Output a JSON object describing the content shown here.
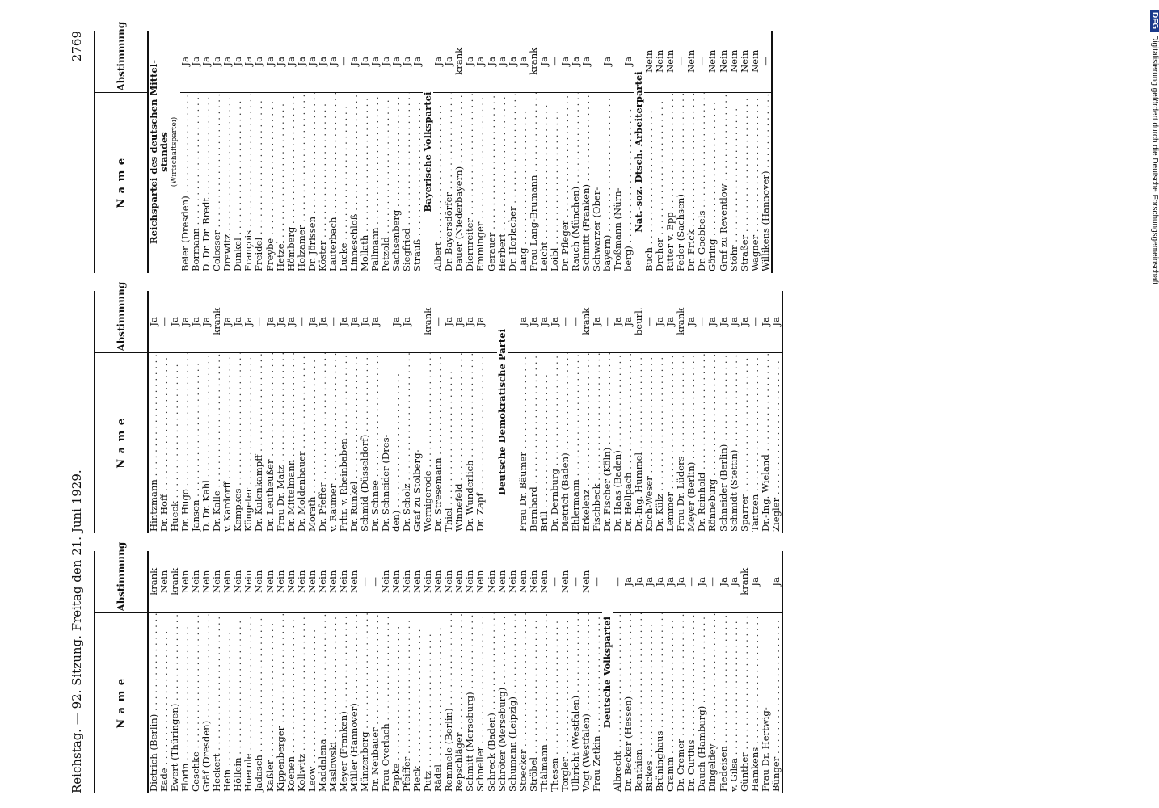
{
  "header": {
    "left": "Reichstag. — 92. Sitzung. Freitag den 21. Juni 1929.",
    "page_number": "2769"
  },
  "column_headers": {
    "name": "N a m e",
    "vote": "Abstimmung"
  },
  "side_credit": {
    "logo": "DFG",
    "text": "Digitalisierung gefördert durch die Deutsche Forschungsgemeinschaft"
  },
  "columns": [
    {
      "rows": [
        {
          "n": "Dietrich (Berlin)",
          "v": "krank"
        },
        {
          "n": "Eade",
          "v": "Nein"
        },
        {
          "n": "Ewert (Thüringen)",
          "v": "krank"
        },
        {
          "n": "Florin",
          "v": "Nein"
        },
        {
          "n": "Geschke",
          "v": "Nein"
        },
        {
          "n": "Gräf (Dresden)",
          "v": "Nein"
        },
        {
          "n": "Heckert",
          "v": "Nein"
        },
        {
          "n": "Hein",
          "v": "Nein"
        },
        {
          "n": "Höllein",
          "v": "Nein"
        },
        {
          "n": "Hoernle",
          "v": "Nein"
        },
        {
          "n": "Jadasch",
          "v": "Nein"
        },
        {
          "n": "Kaßler",
          "v": "Nein"
        },
        {
          "n": "Kippenberger",
          "v": "Nein"
        },
        {
          "n": "Koenen",
          "v": "Nein"
        },
        {
          "n": "Kollwitz",
          "v": "Nein"
        },
        {
          "n": "Leow",
          "v": "Nein"
        },
        {
          "n": "Maddalena",
          "v": "Nein"
        },
        {
          "n": "Maslowski",
          "v": "Nein"
        },
        {
          "n": "Meyer (Franken)",
          "v": "Nein"
        },
        {
          "n": "Müller (Hannover)",
          "v": "Nein"
        },
        {
          "n": "Münzenberg",
          "v": "—"
        },
        {
          "n": "Dr. Neubauer",
          "v": "—"
        },
        {
          "n": "Frau Overlach",
          "v": "Nein"
        },
        {
          "n": "Papke",
          "v": "Nein"
        },
        {
          "n": "Pfeiffer",
          "v": "Nein"
        },
        {
          "n": "Pieck",
          "v": "Nein"
        },
        {
          "n": "Putz",
          "v": "Nein"
        },
        {
          "n": "Rädel",
          "v": "Nein"
        },
        {
          "n": "Remmele (Berlin)",
          "v": "Nein"
        },
        {
          "n": "Repschläger",
          "v": "Nein"
        },
        {
          "n": "Schmitt (Merseburg)",
          "v": "Nein"
        },
        {
          "n": "Schneller",
          "v": "Nein"
        },
        {
          "n": "Schreck (Baden)",
          "v": "Nein"
        },
        {
          "n": "Schröter (Merseburg)",
          "v": "Nein"
        },
        {
          "n": "Schumann (Leipzig)",
          "v": "Nein"
        },
        {
          "n": "Stoecker",
          "v": "Nein"
        },
        {
          "n": "Ströbel",
          "v": "Nein"
        },
        {
          "n": "Thälmann",
          "v": "Nein"
        },
        {
          "n": "Thesen",
          "v": "—"
        },
        {
          "n": "Torgler",
          "v": "Nein"
        },
        {
          "n": "Ulbricht (Westfalen)",
          "v": "—"
        },
        {
          "n": "Vogt (Westfalen)",
          "v": "Nein"
        },
        {
          "n": "Frau Zetkin",
          "v": "—"
        },
        {
          "n": "Deutsche Volkspartei",
          "v": "",
          "party": true
        },
        {
          "n": "Albrecht",
          "v": "—"
        },
        {
          "n": "Dr. Becker (Hessen)",
          "v": "Ja"
        },
        {
          "n": "Benthien",
          "v": "Ja"
        },
        {
          "n": "Bickes",
          "v": "Ja"
        },
        {
          "n": "Brüninghaus",
          "v": "Ja"
        },
        {
          "n": "Cramm",
          "v": "Ja"
        },
        {
          "n": "Dr. Cremer",
          "v": "Ja"
        },
        {
          "n": "Dr. Curtius",
          "v": "—"
        },
        {
          "n": "Dauch (Hamburg)",
          "v": "Ja"
        },
        {
          "n": "Dingeldey",
          "v": "—"
        },
        {
          "n": "Fiedeisen",
          "v": "Ja"
        },
        {
          "n": "v. Gilsa",
          "v": "Ja"
        },
        {
          "n": "Günther",
          "v": "krank"
        },
        {
          "n": "Hamkens",
          "v": "Ja"
        },
        {
          "n": "Frau Dr. Hertwig-",
          "v": ""
        },
        {
          "n": "Bünger",
          "v": "Ja"
        }
      ]
    },
    {
      "rows": [
        {
          "n": "Hintzmann",
          "v": "Ja"
        },
        {
          "n": "Dr. Hoff",
          "v": "—"
        },
        {
          "n": "Hueck",
          "v": "Ja"
        },
        {
          "n": "Dr. Hugo",
          "v": "Ja"
        },
        {
          "n": "Janson",
          "v": "Ja"
        },
        {
          "n": "D. Dr. Kahl",
          "v": "Ja"
        },
        {
          "n": "Dr. Kalle",
          "v": "krank"
        },
        {
          "n": "v. Kardorff",
          "v": "Ja"
        },
        {
          "n": "Kempkes",
          "v": "Ja"
        },
        {
          "n": "Köngeter",
          "v": "Ja"
        },
        {
          "n": "Dr. Kulenkampff",
          "v": "—"
        },
        {
          "n": "Dr. Leutheußer",
          "v": "Ja"
        },
        {
          "n": "Frau Dr. Matz",
          "v": "Ja"
        },
        {
          "n": "Dr. Mittelmann",
          "v": "Ja"
        },
        {
          "n": "Dr. Moldenhauer",
          "v": "—"
        },
        {
          "n": "Morath",
          "v": "Ja"
        },
        {
          "n": "Dr. Pfeffer",
          "v": "Ja"
        },
        {
          "n": "v. Raumer",
          "v": "—"
        },
        {
          "n": "Frhr. v. Rheinbaben",
          "v": "Ja"
        },
        {
          "n": "Dr. Runkel",
          "v": "Ja"
        },
        {
          "n": "Schmid (Düsseldorf)",
          "v": "Ja"
        },
        {
          "n": "Dr. Schnee",
          "v": "Ja"
        },
        {
          "n": "Dr. Schneider (Dres-",
          "v": ""
        },
        {
          "n": "den)",
          "v": "Ja"
        },
        {
          "n": "Dr. Scholz",
          "v": "Ja"
        },
        {
          "n": "Graf zu Stolberg-",
          "v": ""
        },
        {
          "n": "Wernigerode",
          "v": "krank"
        },
        {
          "n": "Dr. Stresemann",
          "v": "—"
        },
        {
          "n": "Thiel",
          "v": "Ja"
        },
        {
          "n": "Winnefeld",
          "v": "Ja"
        },
        {
          "n": "Dr. Wunderlich",
          "v": "Ja"
        },
        {
          "n": "Dr. Zapf",
          "v": "Ja"
        },
        {
          "n": "",
          "v": "",
          "blank": true
        },
        {
          "n": "Deutsche Demokratische Partei",
          "v": "",
          "party": true
        },
        {
          "n": "",
          "v": "",
          "blank": true
        },
        {
          "n": "Frau Dr. Bäumer",
          "v": "Ja"
        },
        {
          "n": "Bernhard",
          "v": "Ja"
        },
        {
          "n": "Brill",
          "v": "Ja"
        },
        {
          "n": "Dr. Dernburg",
          "v": "Ja"
        },
        {
          "n": "Dietrich (Baden)",
          "v": "—"
        },
        {
          "n": "Ehlermann",
          "v": "—"
        },
        {
          "n": "Erkelenz",
          "v": "krank"
        },
        {
          "n": "Fischbeck",
          "v": "Ja"
        },
        {
          "n": "Dr. Fischer (Köln)",
          "v": "—"
        },
        {
          "n": "Dr. Haas (Baden)",
          "v": "Ja"
        },
        {
          "n": "Dr. Hellpach",
          "v": "Ja"
        },
        {
          "n": "Dr.-Ing. Hummel",
          "v": "beurl."
        },
        {
          "n": "Koch-Weser",
          "v": "—"
        },
        {
          "n": "Dr. Külz",
          "v": "Ja"
        },
        {
          "n": "Lemmer",
          "v": "Ja"
        },
        {
          "n": "Frau Dr. Lüders",
          "v": "krank"
        },
        {
          "n": "Meyer (Berlin)",
          "v": "Ja"
        },
        {
          "n": "Dr. Reinhold",
          "v": "—"
        },
        {
          "n": "Rönneburg",
          "v": "Ja"
        },
        {
          "n": "Schneider (Berlin)",
          "v": "Ja"
        },
        {
          "n": "Schmidt (Stettin)",
          "v": "Ja"
        },
        {
          "n": "Sparrer",
          "v": "Ja"
        },
        {
          "n": "Tantzen",
          "v": "—"
        },
        {
          "n": "Dr.-Ing. Wieland",
          "v": "Ja"
        },
        {
          "n": "Ziegler",
          "v": "Ja"
        }
      ]
    },
    {
      "rows": [
        {
          "n": "Reichspartei des deutschen Mittel-",
          "v": "",
          "party": true
        },
        {
          "n": "standes",
          "v": "",
          "party": true
        },
        {
          "n": "(Wirtschaftspartei)",
          "v": "",
          "sub": true
        },
        {
          "n": "Beier (Dresden)",
          "v": "Ja"
        },
        {
          "n": "Bormann",
          "v": "Ja"
        },
        {
          "n": "D. Dr. Dr. Bredt",
          "v": "Ja"
        },
        {
          "n": "Colosser",
          "v": "Ja"
        },
        {
          "n": "Drewitz",
          "v": "Ja"
        },
        {
          "n": "Dunkel",
          "v": "Ja"
        },
        {
          "n": "François",
          "v": "Ja"
        },
        {
          "n": "Freidel",
          "v": "Ja"
        },
        {
          "n": "Freybe",
          "v": "Ja"
        },
        {
          "n": "Hetzel",
          "v": "Ja"
        },
        {
          "n": "Hömberg",
          "v": "Ja"
        },
        {
          "n": "Holzamer",
          "v": "Ja"
        },
        {
          "n": "Dr. Jörissen",
          "v": "Ja"
        },
        {
          "n": "Köster",
          "v": "Ja"
        },
        {
          "n": "Lauterbach",
          "v": "Ja"
        },
        {
          "n": "Lucke",
          "v": "—"
        },
        {
          "n": "Linneschloß",
          "v": "Ja"
        },
        {
          "n": "Mollath",
          "v": "Ja"
        },
        {
          "n": "Pallmann",
          "v": "Ja"
        },
        {
          "n": "Petzold",
          "v": "Ja"
        },
        {
          "n": "Sachsenberg",
          "v": "Ja"
        },
        {
          "n": "Siegfried",
          "v": "Ja"
        },
        {
          "n": "Strauß",
          "v": "Ja"
        },
        {
          "n": "Bayerische Volkspartei",
          "v": "",
          "party": true
        },
        {
          "n": "Albert",
          "v": "Ja"
        },
        {
          "n": "Dr. Bayersdörfer",
          "v": "Ja"
        },
        {
          "n": "Dauer (Niederbayern)",
          "v": "krank"
        },
        {
          "n": "Diernreiter",
          "v": "Ja"
        },
        {
          "n": "Emminger",
          "v": "Ja"
        },
        {
          "n": "Gerauer",
          "v": "Ja"
        },
        {
          "n": "Herbert",
          "v": "Ja"
        },
        {
          "n": "Dr. Horlacher",
          "v": "Ja"
        },
        {
          "n": "Lang",
          "v": "Ja"
        },
        {
          "n": "Frau Lang-Brumann",
          "v": "krank"
        },
        {
          "n": "Leicht",
          "v": "Ja"
        },
        {
          "n": "Loibl",
          "v": "—"
        },
        {
          "n": "Dr. Pfleger",
          "v": "Ja"
        },
        {
          "n": "Rauch (München)",
          "v": "Ja"
        },
        {
          "n": "Schmitt (Franken)",
          "v": "Ja"
        },
        {
          "n": "Schwarzer (Ober-",
          "v": ""
        },
        {
          "n": "bayern)",
          "v": "Ja"
        },
        {
          "n": "Troßmann (Nürn-",
          "v": ""
        },
        {
          "n": "berg)",
          "v": "Ja"
        },
        {
          "n": "Nat.-soz. Dtsch. Arbeiterpartei",
          "v": "",
          "party": true
        },
        {
          "n": "Buch",
          "v": "Nein"
        },
        {
          "n": "Dreher",
          "v": "Nein"
        },
        {
          "n": "Ritter v. Epp",
          "v": "Nein"
        },
        {
          "n": "Feder (Sachsen)",
          "v": "—"
        },
        {
          "n": "Dr. Frick",
          "v": "Nein"
        },
        {
          "n": "Dr. Goebbels",
          "v": "—"
        },
        {
          "n": "Göring",
          "v": "Nein"
        },
        {
          "n": "Graf zu Reventlow",
          "v": "Nein"
        },
        {
          "n": "Stöhr",
          "v": "Nein"
        },
        {
          "n": "Straßer",
          "v": "Nein"
        },
        {
          "n": "Wagner",
          "v": "Nein"
        },
        {
          "n": "Willikens (Hannover)",
          "v": "—"
        }
      ]
    }
  ]
}
